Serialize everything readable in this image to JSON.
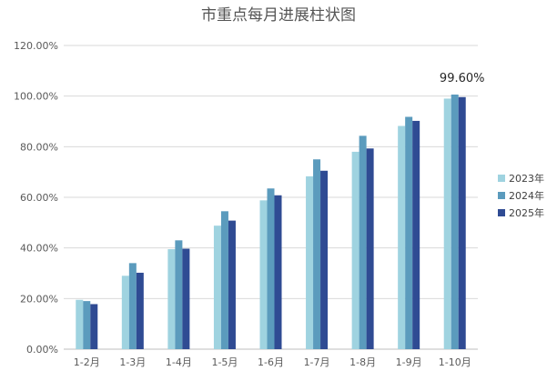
{
  "chart_data": {
    "type": "bar",
    "title": "市重点每月进展柱状图",
    "categories": [
      "1-2月",
      "1-3月",
      "1-4月",
      "1-5月",
      "1-6月",
      "1-7月",
      "1-8月",
      "1-9月",
      "1-10月"
    ],
    "series": [
      {
        "name": "2023年",
        "color": "#9fd3e0",
        "values": [
          19.5,
          29.0,
          39.5,
          48.8,
          58.8,
          68.3,
          78.0,
          88.2,
          99.0
        ]
      },
      {
        "name": "2024年",
        "color": "#5b9bbd",
        "values": [
          19.0,
          34.0,
          43.0,
          54.5,
          63.5,
          75.0,
          84.3,
          91.8,
          100.6
        ]
      },
      {
        "name": "2025年",
        "color": "#2f4b93",
        "values": [
          17.8,
          30.2,
          39.7,
          50.8,
          60.8,
          70.5,
          79.3,
          90.2,
          99.6
        ]
      }
    ],
    "ylim": [
      0,
      120
    ],
    "yticks": [
      "0.00%",
      "20.00%",
      "40.00%",
      "60.00%",
      "80.00%",
      "100.00%",
      "120.00%"
    ],
    "annotation": {
      "text": "99.60%",
      "category": "1-10月",
      "series": "2025年"
    },
    "grid": true,
    "legend": "right",
    "xlabel": "",
    "ylabel": ""
  }
}
